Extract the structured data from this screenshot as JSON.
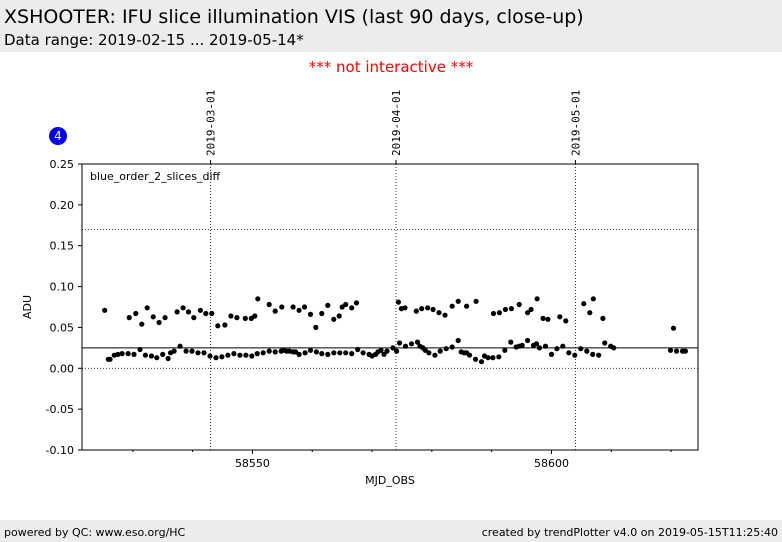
{
  "header": {
    "title": "XSHOOTER: IFU slice illumination VIS (last 90 days, close-up)",
    "subtitle": "Data range: 2019-02-15 ... 2019-05-14*"
  },
  "notice": "*** not interactive ***",
  "footer": {
    "left": "powered by QC: www.eso.org/HC",
    "right": "created by trendPlotter v4.0 on 2019-05-15T11:25:40"
  },
  "colors": {
    "background_bar": "#ececec",
    "notice": "#ff0000",
    "badge": "#0000ee",
    "points": "#000000"
  },
  "chart_data": {
    "type": "scatter",
    "badge": "4",
    "panel_label": "blue_order_2_slices_diff",
    "xlabel": "MJD_OBS",
    "ylabel": "ADU",
    "xlim": [
      58521.5,
      58624.5
    ],
    "ylim": [
      -0.1,
      0.25
    ],
    "x_ticks": [
      58550,
      58600
    ],
    "y_ticks": [
      -0.1,
      -0.05,
      0.0,
      0.05,
      0.1,
      0.15,
      0.2,
      0.25
    ],
    "date_markers": [
      {
        "label": "2019-03-01",
        "mjd": 58543.0
      },
      {
        "label": "2019-04-01",
        "mjd": 58574.0
      },
      {
        "label": "2019-05-01",
        "mjd": 58604.0
      }
    ],
    "reference_lines": {
      "solid": 0.025,
      "dotted": [
        0.0,
        0.17
      ]
    },
    "series": [
      {
        "x": [
          58525.9,
          58526.2,
          58526.9,
          58527.5,
          58528.2,
          58529.2,
          58530.2,
          58531.2,
          58532.1,
          58533.1,
          58534.0,
          58535.0,
          58535.9,
          58536.3,
          58536.9,
          58537.9,
          58538.9,
          58539.9,
          58540.9,
          58541.9,
          58542.9,
          58543.9,
          58544.9,
          58545.9,
          58546.9,
          58547.9,
          58548.9,
          58549.9,
          58550.8,
          58551.8,
          58552.8,
          58553.8,
          58554.8,
          58555.2,
          58555.7,
          58556.2,
          58556.8,
          58557.2,
          58557.8,
          58558.8,
          58559.7,
          58560.7,
          58561.6,
          58562.6,
          58563.6,
          58564.6,
          58565.6,
          58566.6,
          58567.6,
          58568.5,
          58569.5,
          58570.0,
          58570.6,
          58571.0,
          58571.5,
          58572.0,
          58572.5,
          58573.5,
          58574.1,
          58574.6,
          58575.6,
          58576.6,
          58577.6,
          58578.0,
          58578.5,
          58578.9,
          58579.5,
          58580.5,
          58581.4,
          58582.4,
          58583.4,
          58584.4,
          58584.9,
          58585.4,
          58585.8,
          58586.3,
          58587.3,
          58588.3,
          58588.8,
          58589.4,
          58590.2,
          58591.2,
          58592.2,
          58593.2,
          58594.1,
          58594.6,
          58595.1,
          58596.0,
          58597.0,
          58597.5,
          58598.0,
          58599.0,
          58600.0,
          58600.9,
          58601.9,
          58602.9,
          58603.9,
          58604.9,
          58605.9,
          58606.9,
          58607.9,
          58608.9,
          58609.9,
          58610.4,
          58619.9,
          58620.9,
          58621.9,
          58622.4
        ],
        "y": [
          0.011,
          0.011,
          0.016,
          0.017,
          0.018,
          0.018,
          0.017,
          0.023,
          0.016,
          0.015,
          0.013,
          0.017,
          0.012,
          0.019,
          0.021,
          0.027,
          0.021,
          0.021,
          0.019,
          0.019,
          0.015,
          0.013,
          0.014,
          0.016,
          0.018,
          0.016,
          0.016,
          0.015,
          0.018,
          0.019,
          0.021,
          0.02,
          0.021,
          0.022,
          0.021,
          0.021,
          0.02,
          0.02,
          0.017,
          0.019,
          0.022,
          0.02,
          0.018,
          0.017,
          0.019,
          0.019,
          0.019,
          0.018,
          0.023,
          0.019,
          0.017,
          0.015,
          0.017,
          0.02,
          0.022,
          0.017,
          0.021,
          0.025,
          0.021,
          0.031,
          0.027,
          0.03,
          0.032,
          0.027,
          0.025,
          0.022,
          0.019,
          0.016,
          0.021,
          0.024,
          0.026,
          0.034,
          0.02,
          0.019,
          0.019,
          0.016,
          0.011,
          0.008,
          0.015,
          0.013,
          0.013,
          0.014,
          0.022,
          0.032,
          0.026,
          0.027,
          0.028,
          0.034,
          0.028,
          0.03,
          0.025,
          0.027,
          0.017,
          0.024,
          0.027,
          0.019,
          0.016,
          0.024,
          0.021,
          0.017,
          0.016,
          0.031,
          0.027,
          0.025,
          0.022,
          0.021,
          0.021,
          0.021
        ]
      },
      {
        "x": [
          58525.3,
          58529.4,
          58530.5,
          58531.5,
          58532.4,
          58533.4,
          58534.4,
          58535.4,
          58537.4,
          58538.4,
          58539.3,
          58540.2,
          58541.3,
          58542.2,
          58543.2,
          58544.2,
          58545.4,
          58546.4,
          58547.4,
          58548.8,
          58549.8,
          58550.4,
          58550.9,
          58552.8,
          58553.8,
          58554.9,
          58556.8,
          58557.8,
          58558.7,
          58559.7,
          58560.6,
          58561.6,
          58562.6,
          58563.6,
          58564.5,
          58565.0,
          58565.6,
          58566.6,
          58567.4,
          58574.4,
          58574.9,
          58575.5,
          58577.4,
          58578.3,
          58579.3,
          58580.2,
          58581.2,
          58582.2,
          58583.4,
          58584.4,
          58585.8,
          58587.4,
          58590.3,
          58591.3,
          58592.3,
          58593.3,
          58594.6,
          58596.0,
          58596.6,
          58597.6,
          58598.6,
          58599.4,
          58601.4,
          58602.4,
          58605.4,
          58606.4,
          58607.0,
          58608.6,
          58620.4
        ],
        "y": [
          0.071,
          0.062,
          0.067,
          0.054,
          0.074,
          0.063,
          0.056,
          0.062,
          0.069,
          0.074,
          0.069,
          0.062,
          0.071,
          0.067,
          0.067,
          0.052,
          0.053,
          0.064,
          0.062,
          0.061,
          0.061,
          0.064,
          0.085,
          0.078,
          0.07,
          0.075,
          0.075,
          0.071,
          0.075,
          0.066,
          0.05,
          0.067,
          0.077,
          0.06,
          0.064,
          0.075,
          0.078,
          0.074,
          0.08,
          0.081,
          0.073,
          0.074,
          0.07,
          0.073,
          0.074,
          0.072,
          0.068,
          0.065,
          0.076,
          0.082,
          0.076,
          0.082,
          0.067,
          0.068,
          0.072,
          0.073,
          0.078,
          0.068,
          0.072,
          0.085,
          0.061,
          0.06,
          0.063,
          0.058,
          0.079,
          0.068,
          0.085,
          0.061,
          0.049
        ]
      }
    ]
  }
}
